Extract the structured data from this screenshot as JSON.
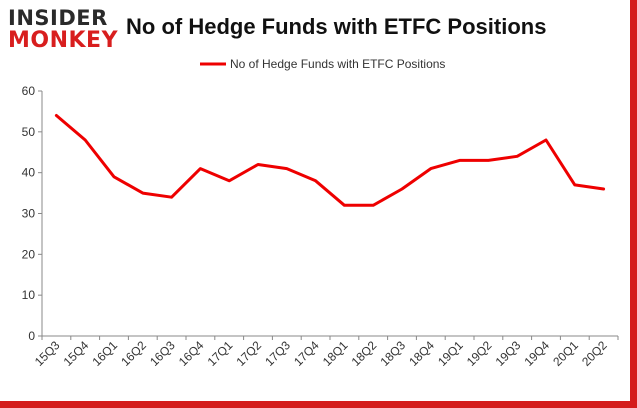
{
  "logo": {
    "line1": "INSIDER",
    "line2": "MONKEY"
  },
  "chart_data": {
    "type": "line",
    "title": "No of Hedge Funds with ETFC Positions",
    "xlabel": "",
    "ylabel": "",
    "categories": [
      "15Q3",
      "15Q4",
      "16Q1",
      "16Q2",
      "16Q3",
      "16Q4",
      "17Q1",
      "17Q2",
      "17Q3",
      "17Q4",
      "18Q1",
      "18Q2",
      "18Q3",
      "18Q4",
      "19Q1",
      "19Q2",
      "19Q3",
      "19Q4",
      "20Q1",
      "20Q2"
    ],
    "series": [
      {
        "name": "No of Hedge Funds with ETFC Positions",
        "values": [
          54,
          48,
          39,
          35,
          34,
          41,
          38,
          42,
          41,
          38,
          32,
          32,
          36,
          41,
          43,
          43,
          44,
          48,
          37,
          36
        ]
      }
    ],
    "ylim": [
      0,
      60
    ],
    "yticks": [
      0,
      10,
      20,
      30,
      40,
      50,
      60
    ],
    "grid": false,
    "legend": "top-center",
    "colors": {
      "line": "#ee0000",
      "axis": "#888888",
      "accent": "#d41c1c"
    }
  }
}
